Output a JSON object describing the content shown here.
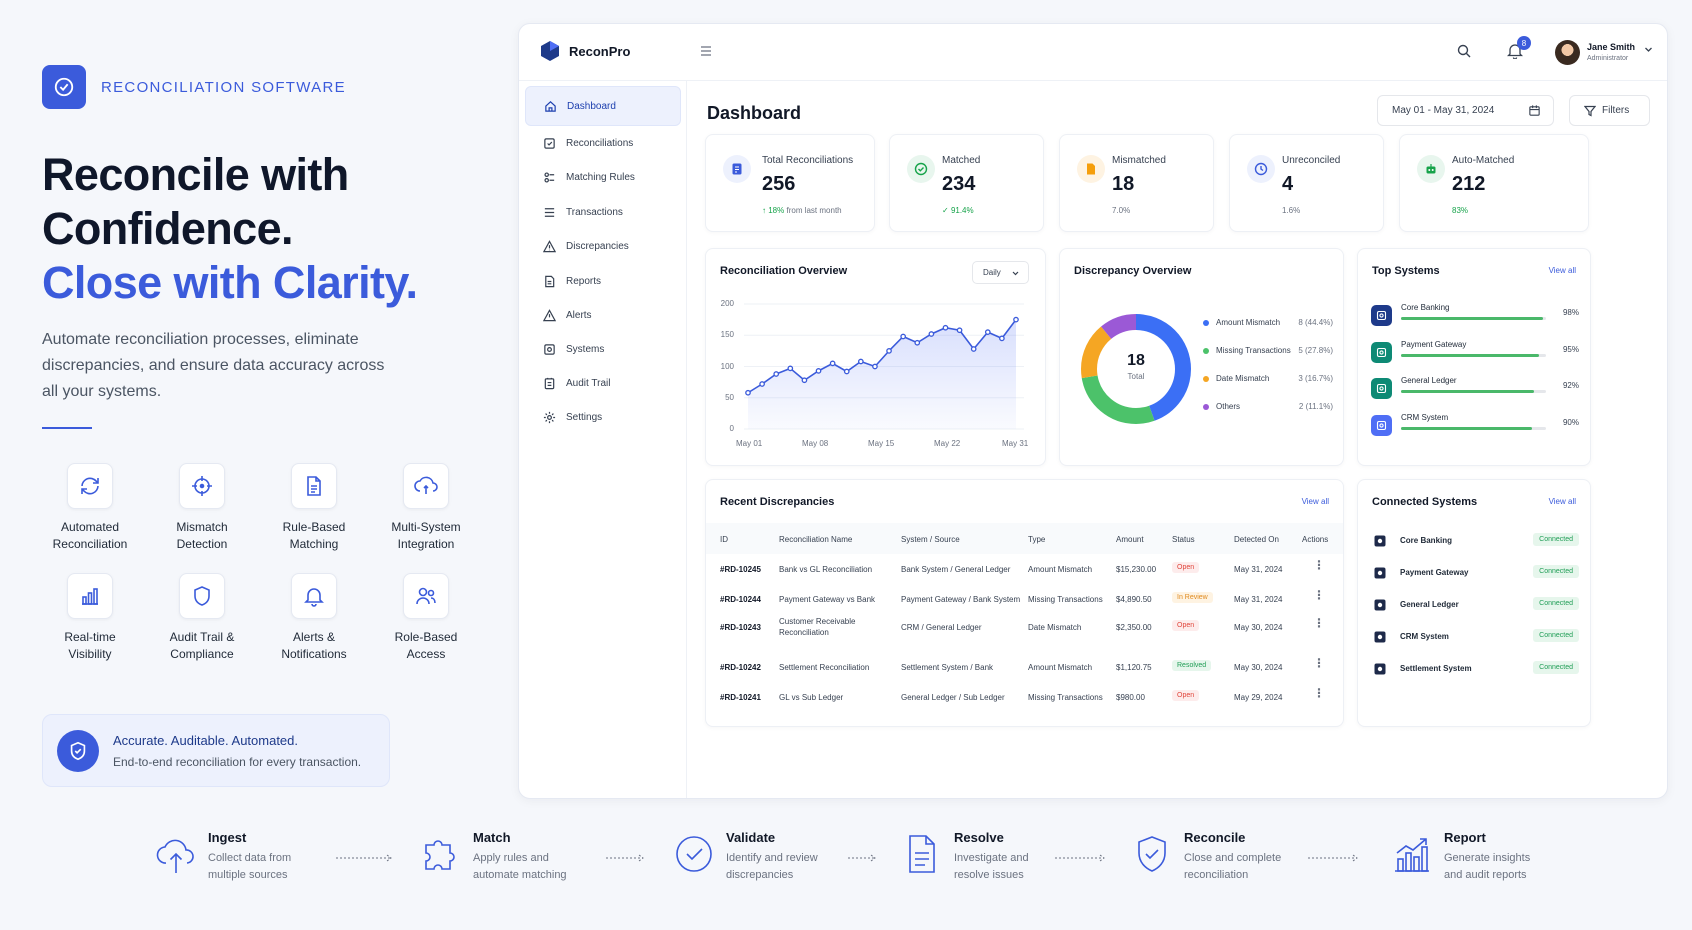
{
  "brand": {
    "label": "RECONCILIATION SOFTWARE"
  },
  "hero": {
    "line1": "Reconcile with",
    "line2": "Confidence.",
    "line3": "Close with Clarity.",
    "lead": "Automate reconciliation processes, eliminate discrepancies, and ensure data accuracy across all your systems."
  },
  "features": [
    {
      "icon": "refresh-icon",
      "label": "Automated\nReconciliation"
    },
    {
      "icon": "crosshair-icon",
      "label": "Mismatch\nDetection"
    },
    {
      "icon": "document-icon",
      "label": "Rule-Based\nMatching"
    },
    {
      "icon": "cloud-sync-icon",
      "label": "Multi-System\nIntegration"
    },
    {
      "icon": "bar-chart-icon",
      "label": "Real-time\nVisibility"
    },
    {
      "icon": "shield-icon",
      "label": "Audit Trail &\nCompliance"
    },
    {
      "icon": "bell-icon",
      "label": "Alerts &\nNotifications"
    },
    {
      "icon": "users-icon",
      "label": "Role-Based\nAccess"
    }
  ],
  "callout": {
    "title": "Accurate. Auditable. Automated.",
    "subtitle": "End-to-end reconciliation for every transaction."
  },
  "app": {
    "name": "ReconPro",
    "notifications": "8",
    "user": {
      "name": "Jane Smith",
      "role": "Administrator"
    },
    "nav": [
      {
        "label": "Dashboard",
        "icon": "home-icon",
        "active": true
      },
      {
        "label": "Reconciliations",
        "icon": "reconcile-icon"
      },
      {
        "label": "Matching Rules",
        "icon": "rules-icon"
      },
      {
        "label": "Transactions",
        "icon": "list-icon"
      },
      {
        "label": "Discrepancies",
        "icon": "warning-icon"
      },
      {
        "label": "Reports",
        "icon": "report-icon"
      },
      {
        "label": "Alerts",
        "icon": "alert-icon"
      },
      {
        "label": "Systems",
        "icon": "layers-icon"
      },
      {
        "label": "Audit Trail",
        "icon": "audit-icon"
      },
      {
        "label": "Settings",
        "icon": "gear-icon"
      }
    ],
    "page_title": "Dashboard",
    "date_range": "May 01 - May 31, 2024",
    "filters_label": "Filters",
    "stats": [
      {
        "label": "Total Reconciliations",
        "value": "256",
        "trend": "18%",
        "sub": "from last month",
        "color": "#3b5bdb",
        "bg": "#edf1fd"
      },
      {
        "label": "Matched",
        "value": "234",
        "sub": "91.4%",
        "color": "#16a34a",
        "bg": "#e8f6ee"
      },
      {
        "label": "Mismatched",
        "value": "18",
        "sub": "7.0%",
        "color": "#f59e0b",
        "bg": "#fef3e2"
      },
      {
        "label": "Unreconciled",
        "value": "4",
        "sub": "1.6%",
        "color": "#3b5bdb",
        "bg": "#edf1fd"
      },
      {
        "label": "Auto-Matched",
        "value": "212",
        "sub": "83%",
        "color": "#16a34a",
        "bg": "#e8f6ee"
      }
    ],
    "overview": {
      "title": "Reconciliation Overview",
      "period": "Daily",
      "chart_data": {
        "type": "area",
        "yticks": [
          "200",
          "150",
          "100",
          "50",
          "0"
        ],
        "ylim": [
          0,
          200
        ],
        "xticks": [
          "May 01",
          "May 08",
          "May 15",
          "May 22",
          "May 31"
        ],
        "x": [
          1,
          2,
          3,
          4,
          5,
          6,
          7,
          8,
          9,
          10,
          11,
          12,
          13,
          14,
          15,
          16,
          17,
          18,
          19,
          20
        ],
        "values": [
          58,
          72,
          88,
          97,
          78,
          93,
          105,
          92,
          108,
          100,
          125,
          148,
          138,
          152,
          162,
          158,
          128,
          155,
          145,
          175
        ]
      }
    },
    "discrepancy": {
      "title": "Discrepancy Overview",
      "total": "18",
      "total_label": "Total",
      "chart_data": {
        "type": "pie",
        "labels": [
          "Amount Mismatch",
          "Missing Transactions",
          "Date Mismatch",
          "Others"
        ],
        "values": [
          8,
          5,
          3,
          2
        ],
        "display": [
          "8 (44.4%)",
          "5 (27.8%)",
          "3 (16.7%)",
          "2 (11.1%)"
        ],
        "colors": [
          "#3b6ff5",
          "#4cc26a",
          "#f5a623",
          "#9b59d6"
        ]
      }
    },
    "top_systems": {
      "title": "Top Systems",
      "view_all": "View all",
      "items": [
        {
          "name": "Core Banking",
          "pct": "98%",
          "value": 98,
          "color": "#1e3a8a"
        },
        {
          "name": "Payment Gateway",
          "pct": "95%",
          "value": 95,
          "color": "#0e8a75"
        },
        {
          "name": "General Ledger",
          "pct": "92%",
          "value": 92,
          "color": "#0e8a75"
        },
        {
          "name": "CRM System",
          "pct": "90%",
          "value": 90,
          "color": "#4f6ef5"
        }
      ]
    },
    "recent": {
      "title": "Recent Discrepancies",
      "view_all": "View all",
      "columns": [
        "ID",
        "Reconciliation Name",
        "System / Source",
        "Type",
        "Amount",
        "Status",
        "Detected On",
        "Actions"
      ],
      "rows": [
        {
          "id": "#RD-10245",
          "name": "Bank vs GL Reconciliation",
          "source": "Bank System / General Ledger",
          "type": "Amount Mismatch",
          "amount": "$15,230.00",
          "status": "Open",
          "date": "May 31, 2024"
        },
        {
          "id": "#RD-10244",
          "name": "Payment Gateway vs Bank",
          "source": "Payment Gateway / Bank System",
          "type": "Missing Transactions",
          "amount": "$4,890.50",
          "status": "In Review",
          "date": "May 31, 2024"
        },
        {
          "id": "#RD-10243",
          "name": "Customer Receivable Reconciliation",
          "source": "CRM / General Ledger",
          "type": "Date Mismatch",
          "amount": "$2,350.00",
          "status": "Open",
          "date": "May 30, 2024"
        },
        {
          "id": "#RD-10242",
          "name": "Settlement Reconciliation",
          "source": "Settlement System / Bank",
          "type": "Amount Mismatch",
          "amount": "$1,120.75",
          "status": "Resolved",
          "date": "May 30, 2024"
        },
        {
          "id": "#RD-10241",
          "name": "GL vs Sub Ledger",
          "source": "General Ledger / Sub Ledger",
          "type": "Missing Transactions",
          "amount": "$980.00",
          "status": "Open",
          "date": "May 29, 2024"
        }
      ]
    },
    "connected": {
      "title": "Connected Systems",
      "view_all": "View all",
      "items": [
        {
          "name": "Core Banking",
          "status": "Connected"
        },
        {
          "name": "Payment Gateway",
          "status": "Connected"
        },
        {
          "name": "General Ledger",
          "status": "Connected"
        },
        {
          "name": "CRM System",
          "status": "Connected"
        },
        {
          "name": "Settlement System",
          "status": "Connected"
        }
      ]
    }
  },
  "flow": [
    {
      "title": "Ingest",
      "desc": "Collect data from\nmultiple sources",
      "icon": "cloud-upload-icon"
    },
    {
      "title": "Match",
      "desc": "Apply rules and\nautomate matching",
      "icon": "puzzle-icon"
    },
    {
      "title": "Validate",
      "desc": "Identify and review\ndiscrepancies",
      "icon": "check-circle-icon"
    },
    {
      "title": "Resolve",
      "desc": "Investigate and\nresolve issues",
      "icon": "document-icon"
    },
    {
      "title": "Reconcile",
      "desc": "Close and complete\nreconciliation",
      "icon": "shield-check-icon"
    },
    {
      "title": "Report",
      "desc": "Generate insights\nand audit reports",
      "icon": "growth-chart-icon"
    }
  ]
}
